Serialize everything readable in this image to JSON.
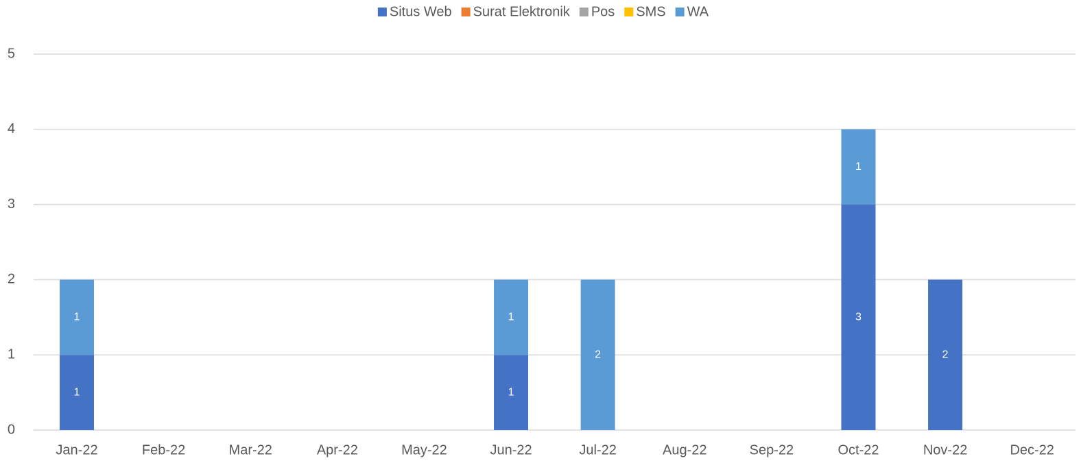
{
  "chart_data": {
    "type": "stacked_bar",
    "categories": [
      "Jan-22",
      "Feb-22",
      "Mar-22",
      "Apr-22",
      "May-22",
      "Jun-22",
      "Jul-22",
      "Aug-22",
      "Sep-22",
      "Oct-22",
      "Nov-22",
      "Dec-22"
    ],
    "series": [
      {
        "name": "Situs Web",
        "color": "#4472c4",
        "values": [
          1,
          null,
          null,
          null,
          null,
          1,
          null,
          null,
          null,
          3,
          2,
          null
        ]
      },
      {
        "name": "Surat Elektronik",
        "color": "#ed7d31",
        "values": [
          null,
          null,
          null,
          null,
          null,
          null,
          null,
          null,
          null,
          null,
          null,
          null
        ]
      },
      {
        "name": "Pos",
        "color": "#a5a5a5",
        "values": [
          null,
          null,
          null,
          null,
          null,
          null,
          null,
          null,
          null,
          null,
          null,
          null
        ]
      },
      {
        "name": "SMS",
        "color": "#ffc000",
        "values": [
          null,
          null,
          null,
          null,
          null,
          null,
          null,
          null,
          null,
          null,
          null,
          null
        ]
      },
      {
        "name": "WA",
        "color": "#5b9bd5",
        "values": [
          1,
          null,
          null,
          null,
          null,
          1,
          2,
          null,
          null,
          1,
          null,
          null
        ]
      }
    ],
    "ylim": [
      0,
      5
    ],
    "yticks": [
      0,
      1,
      2,
      3,
      4,
      5
    ],
    "grid": true,
    "legend": "top"
  }
}
